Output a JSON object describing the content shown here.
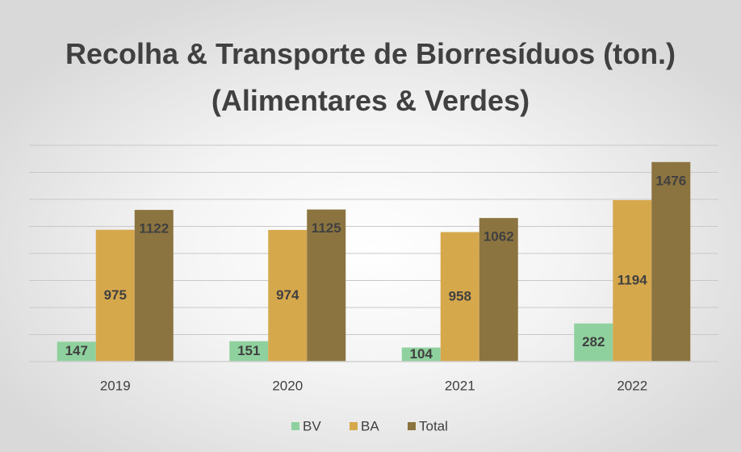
{
  "chart_data": {
    "type": "bar",
    "title": "Recolha & Transporte de Biorresíduos (ton.) (Alimentares & Verdes)",
    "categories": [
      "2019",
      "2020",
      "2021",
      "2022"
    ],
    "series": [
      {
        "name": "BV",
        "color": "#8fd19e",
        "values": [
          147,
          151,
          104,
          282
        ]
      },
      {
        "name": "BA",
        "color": "#d6a84c",
        "values": [
          975,
          974,
          958,
          1194
        ]
      },
      {
        "name": "Total",
        "color": "#8c7440",
        "values": [
          1122,
          1125,
          1062,
          1476
        ]
      }
    ],
    "ylim": [
      0,
      1600
    ],
    "yticks": [
      0,
      200,
      400,
      600,
      800,
      1000,
      1200,
      1400,
      1600
    ],
    "grid": true,
    "legend": "bottom"
  }
}
